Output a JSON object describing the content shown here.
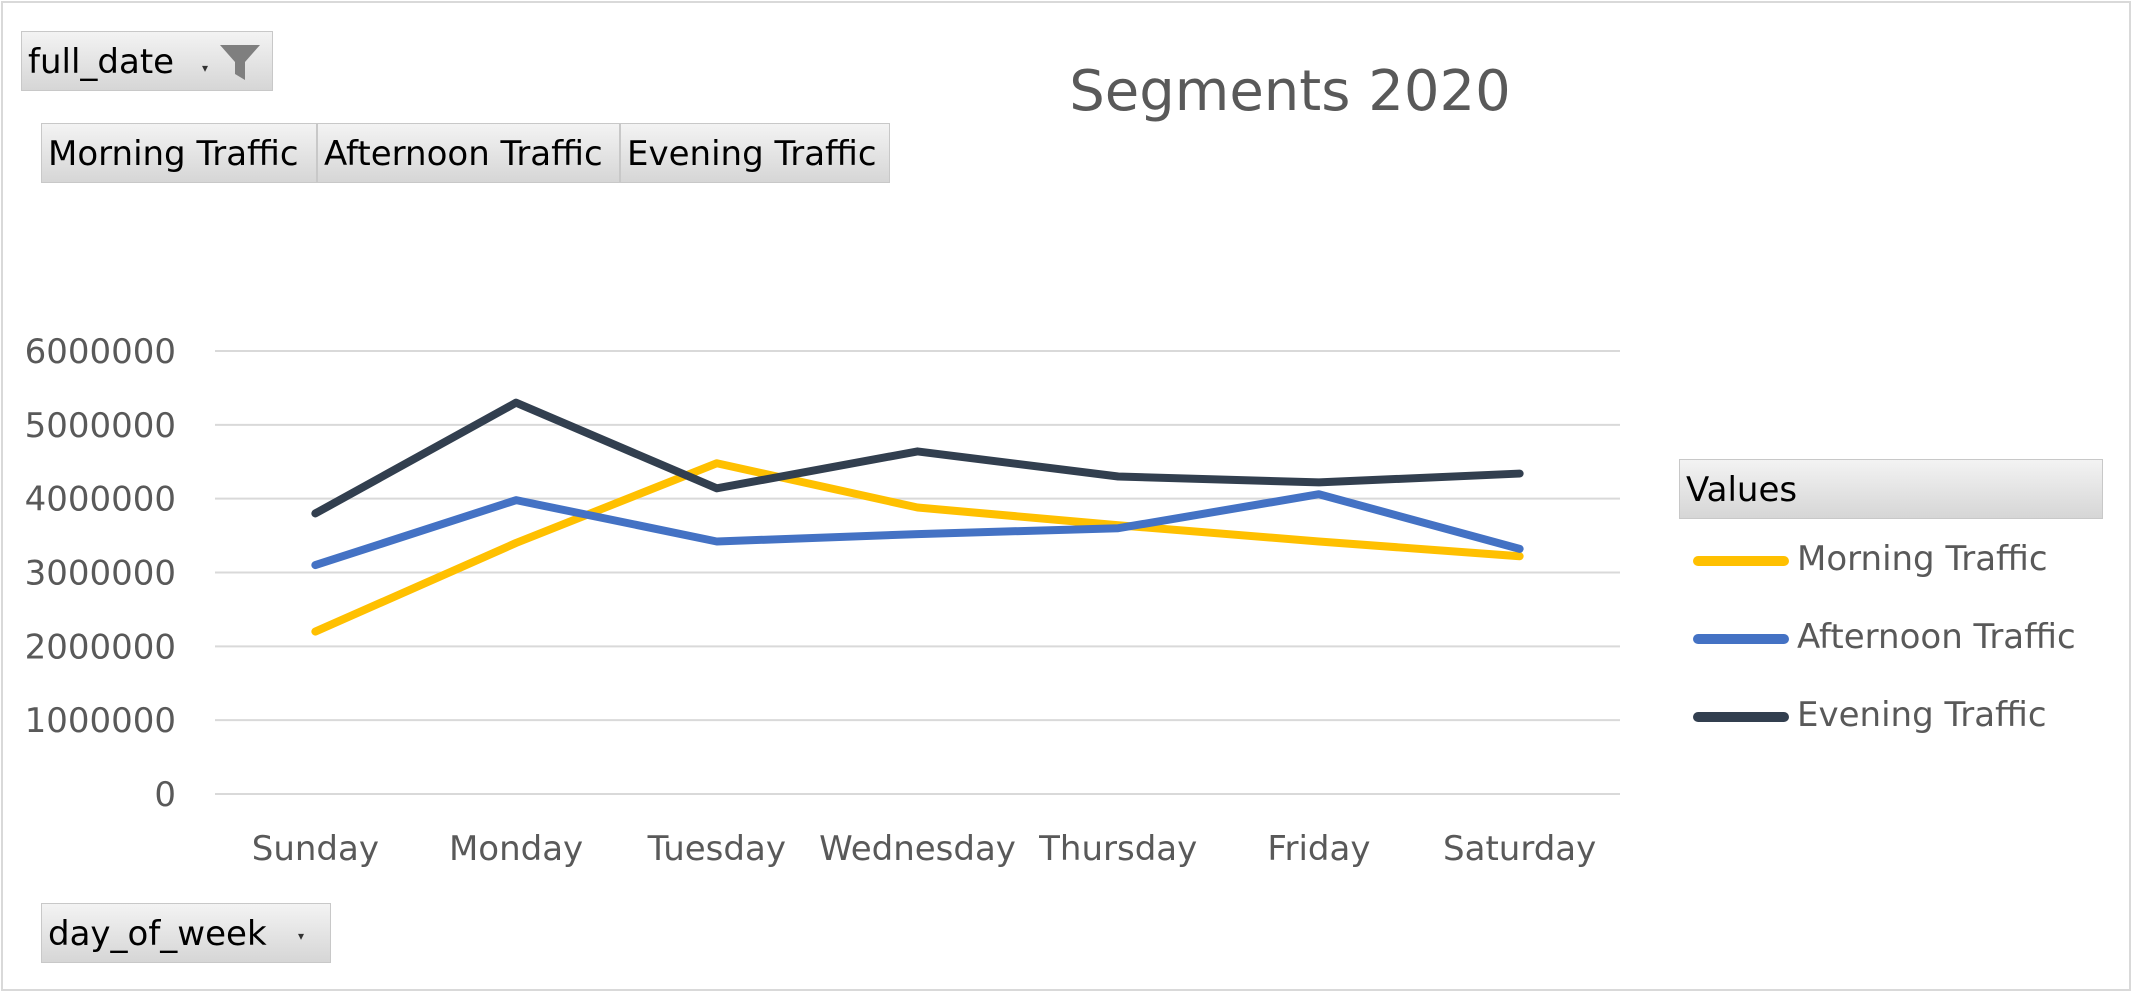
{
  "filter_field": {
    "label": "full_date",
    "icon": "filter-icon"
  },
  "value_fields": [
    "Morning Traffic",
    "Afternoon Traffic",
    "Evening Traffic"
  ],
  "axis_field": {
    "label": "day_of_week"
  },
  "legend": {
    "title": "Values"
  },
  "chart_data": {
    "type": "line",
    "title": "Segments 2020",
    "categories": [
      "Sunday",
      "Monday",
      "Tuesday",
      "Wednesday",
      "Thursday",
      "Friday",
      "Saturday"
    ],
    "series": [
      {
        "name": "Morning Traffic",
        "color": "#FFC000",
        "values": [
          2200000,
          3400000,
          4480000,
          3880000,
          3640000,
          3420000,
          3220000
        ]
      },
      {
        "name": "Afternoon Traffic",
        "color": "#4472C4",
        "values": [
          3100000,
          3980000,
          3420000,
          3520000,
          3600000,
          4060000,
          3320000
        ]
      },
      {
        "name": "Evening Traffic",
        "color": "#323F4F",
        "values": [
          3800000,
          5300000,
          4140000,
          4640000,
          4300000,
          4220000,
          4340000
        ]
      }
    ],
    "ylim": [
      0,
      6000000
    ],
    "yticks": [
      0,
      1000000,
      2000000,
      3000000,
      4000000,
      5000000,
      6000000
    ],
    "xlabel": "",
    "ylabel": "",
    "grid": true,
    "legend_position": "right"
  }
}
